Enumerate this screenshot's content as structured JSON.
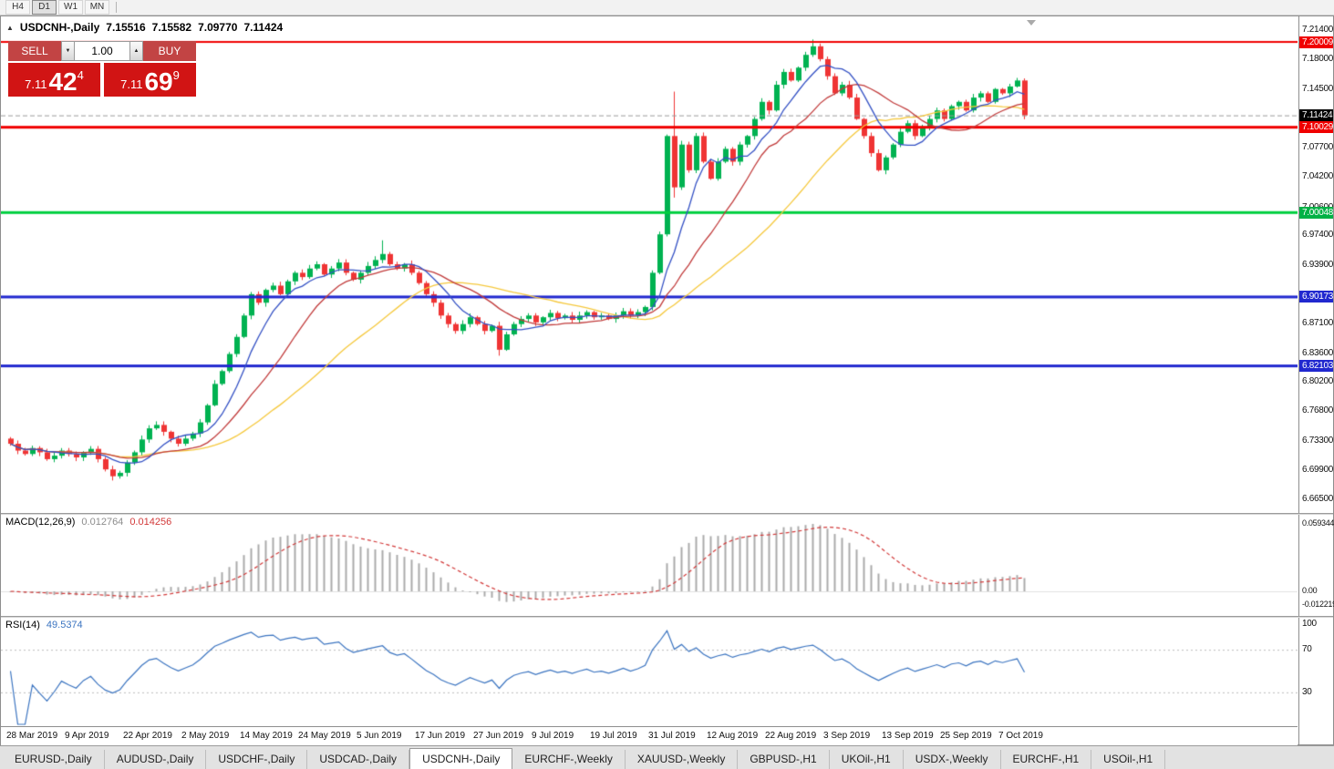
{
  "toolbar": {
    "timeframes": [
      "H4",
      "D1",
      "W1",
      "MN"
    ],
    "active_timeframe": "D1"
  },
  "chart": {
    "header": {
      "symbol": "USDCNH-,Daily",
      "open": "7.15516",
      "high": "7.15582",
      "low": "7.09770",
      "close": "7.11424"
    }
  },
  "trade_panel": {
    "sell_label": "SELL",
    "buy_label": "BUY",
    "volume": "1.00",
    "sell_price": {
      "small": "7.11",
      "big": "42",
      "sup": "4"
    },
    "buy_price": {
      "small": "7.11",
      "big": "69",
      "sup": "9"
    }
  },
  "price_axis": {
    "ticks": [
      "7.21400",
      "7.18000",
      "7.14500",
      "7.07700",
      "7.04200",
      "7.00600",
      "6.97400",
      "6.93900",
      "6.87100",
      "6.83600",
      "6.80200",
      "6.76800",
      "6.73300",
      "6.69900",
      "6.66500"
    ],
    "badges": [
      {
        "text": "7.20009",
        "price": 7.20009,
        "type": "red"
      },
      {
        "text": "7.11424",
        "price": 7.11424,
        "type": "current"
      },
      {
        "text": "7.10029",
        "price": 7.10029,
        "type": "red"
      },
      {
        "text": "7.00048",
        "price": 7.00048,
        "type": "green"
      },
      {
        "text": "6.90173",
        "price": 6.90173,
        "type": "blue"
      },
      {
        "text": "6.82103",
        "price": 6.82103,
        "type": "blue"
      }
    ]
  },
  "macd": {
    "name": "MACD(12,26,9)",
    "main_value": "0.012764",
    "signal_value": "0.014256",
    "scale": {
      "top": "0.059344",
      "zero": "0.00",
      "bottom": "-0.012219"
    }
  },
  "rsi": {
    "name": "RSI(14)",
    "value": "49.5374",
    "scale_top": "100",
    "level_high": "70",
    "level_low": "30"
  },
  "tabs": {
    "items": [
      "EURUSD-,Daily",
      "AUDUSD-,Daily",
      "USDCHF-,Daily",
      "USDCAD-,Daily",
      "USDCNH-,Daily",
      "EURCHF-,Weekly",
      "XAUUSD-,Weekly",
      "GBPUSD-,H1",
      "UKOil-,H1",
      "USDX-,Weekly",
      "EURCHF-,H1",
      "USOil-,H1"
    ],
    "active": "USDCNH-,Daily"
  },
  "chart_data": {
    "type": "candlestick",
    "symbol": "USDCNH-",
    "timeframe": "Daily",
    "last_ohlc": {
      "open": 7.15516,
      "high": 7.15582,
      "low": 7.0977,
      "close": 7.11424
    },
    "current_price": 7.11424,
    "ylim": [
      6.665,
      7.214
    ],
    "open_first": 6.736,
    "closes": [
      6.73,
      6.722,
      6.718,
      6.725,
      6.72,
      6.712,
      6.716,
      6.722,
      6.718,
      6.714,
      6.72,
      6.724,
      6.712,
      6.7,
      6.692,
      6.696,
      6.708,
      6.72,
      6.735,
      6.748,
      6.752,
      6.744,
      6.736,
      6.73,
      6.736,
      6.742,
      6.755,
      6.775,
      6.8,
      6.815,
      6.835,
      6.855,
      6.88,
      6.905,
      6.895,
      6.91,
      6.915,
      6.905,
      6.92,
      6.93,
      6.925,
      6.935,
      6.94,
      6.928,
      6.935,
      6.942,
      6.93,
      6.922,
      6.93,
      6.938,
      6.945,
      6.952,
      6.94,
      6.935,
      6.94,
      6.93,
      6.918,
      6.905,
      6.895,
      6.88,
      6.87,
      6.862,
      6.87,
      6.878,
      6.87,
      6.862,
      6.868,
      6.84,
      6.858,
      6.87,
      6.876,
      6.88,
      6.872,
      6.878,
      6.883,
      6.877,
      6.88,
      6.875,
      6.88,
      6.884,
      6.878,
      6.88,
      6.876,
      6.88,
      6.885,
      6.88,
      6.884,
      6.89,
      6.93,
      6.975,
      7.09,
      7.03,
      7.08,
      7.05,
      7.09,
      7.06,
      7.04,
      7.06,
      7.075,
      7.06,
      7.08,
      7.09,
      7.11,
      7.13,
      7.12,
      7.15,
      7.165,
      7.155,
      7.17,
      7.185,
      7.195,
      7.18,
      7.16,
      7.14,
      7.15,
      7.135,
      7.11,
      7.09,
      7.07,
      7.05,
      7.065,
      7.08,
      7.095,
      7.105,
      7.09,
      7.1,
      7.11,
      7.12,
      7.11,
      7.125,
      7.13,
      7.12,
      7.135,
      7.14,
      7.13,
      7.145,
      7.14,
      7.148,
      7.155,
      7.1142
    ],
    "high_overrides": {
      "51": 6.968,
      "91": 7.142,
      "110": 7.203
    },
    "low_overrides": {
      "14": 6.687,
      "67": 6.833,
      "91": 7.018
    },
    "hlines": [
      {
        "price": 7.20009,
        "color": "#f00000",
        "width": 2
      },
      {
        "price": 7.10029,
        "color": "#f00000",
        "width": 3
      },
      {
        "price": 7.00048,
        "color": "#00cf3f",
        "width": 3
      },
      {
        "price": 6.90173,
        "color": "#2128cf",
        "width": 3
      },
      {
        "price": 6.82103,
        "color": "#2128cf",
        "width": 3
      }
    ],
    "moving_averages": [
      {
        "color": "#f5c83c",
        "period": 30
      },
      {
        "color": "#c13b3b",
        "period": 15
      },
      {
        "color": "#3451c4",
        "period": 7
      }
    ],
    "candle_colors": {
      "up": "#00b251",
      "down": "#ef3434"
    },
    "x_label_step": 8,
    "x_labels": [
      "28 Mar 2019",
      "9 Apr 2019",
      "22 Apr 2019",
      "2 May 2019",
      "14 May 2019",
      "24 May 2019",
      "5 Jun 2019",
      "17 Jun 2019",
      "27 Jun 2019",
      "9 Jul 2019",
      "19 Jul 2019",
      "31 Jul 2019",
      "12 Aug 2019",
      "22 Aug 2019",
      "3 Sep 2019",
      "13 Sep 2019",
      "25 Sep 2019",
      "7 Oct 2019"
    ],
    "indicators": {
      "macd": {
        "fast": 12,
        "slow": 26,
        "signal": 9,
        "histogram_color": "#ababab",
        "signal_color": "#d23a3a",
        "scale_max": 0.059344,
        "scale_min": -0.012219
      },
      "rsi": {
        "period": 14,
        "color": "#3b74c0",
        "levels": [
          70,
          30
        ],
        "range": [
          0,
          100
        ]
      }
    }
  }
}
